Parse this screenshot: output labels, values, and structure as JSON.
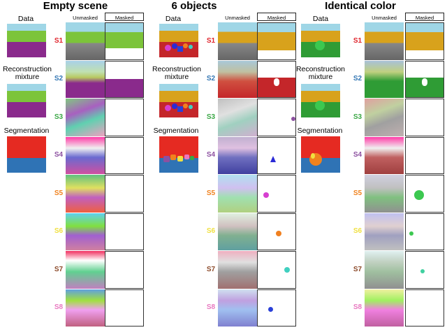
{
  "panels": [
    {
      "title": "Empty scene",
      "data_label": "Data",
      "recon_label": "Reconstruction mixture",
      "seg_label": "Segmentation",
      "col_unmasked": "Unmasked",
      "col_masked": "Masked",
      "slots": [
        "S1",
        "S2",
        "S3",
        "S4",
        "S5",
        "S6",
        "S7",
        "S8"
      ]
    },
    {
      "title": "6 objects",
      "data_label": "Data",
      "recon_label": "Reconstruction mixture",
      "seg_label": "Segmentation",
      "col_unmasked": "Unmasked",
      "col_masked": "Masked",
      "slots": [
        "S1",
        "S2",
        "S3",
        "S4",
        "S5",
        "S6",
        "S7",
        "S8"
      ]
    },
    {
      "title": "Identical color",
      "data_label": "Data",
      "recon_label": "Reconstruction mixture",
      "seg_label": "Segmentation",
      "col_unmasked": "Unmasked",
      "col_masked": "Masked",
      "slots": [
        "S1",
        "S2",
        "S3",
        "S4",
        "S5",
        "S6",
        "S7",
        "S8"
      ]
    }
  ],
  "slot_colors": [
    "#e0232b",
    "#3477b4",
    "#3aa745",
    "#8c50a0",
    "#f0821e",
    "#f0e040",
    "#8c4a2a",
    "#e878c0"
  ],
  "colors": {
    "sky": "#9fd6e6",
    "seg_red": "#e52a22",
    "seg_blue": "#2f73b5"
  }
}
